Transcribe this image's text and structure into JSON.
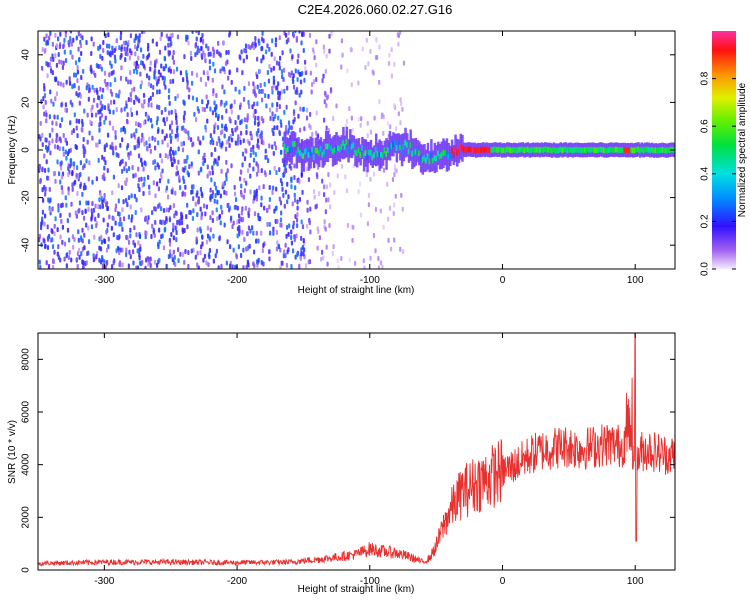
{
  "title": "C2E4.2026.060.02.27.G16",
  "chart_data": [
    {
      "type": "heatmap",
      "title": "",
      "xlabel": "Height of straight line (km)",
      "ylabel": "Frequency (Hz)",
      "xlim": [
        -350,
        130
      ],
      "ylim": [
        -50,
        50
      ],
      "x_ticks": [
        -300,
        -200,
        -100,
        0,
        100
      ],
      "y_ticks": [
        -40,
        -20,
        0,
        20,
        40
      ],
      "colorbar": {
        "label": "Normalized spectral amplitude",
        "range": [
          0,
          1
        ],
        "ticks": [
          0.0,
          0.2,
          0.4,
          0.6,
          0.8
        ]
      },
      "features": [
        {
          "region": "noise",
          "x_range": [
            -350,
            -75
          ],
          "y_range": [
            -50,
            50
          ],
          "amplitude": 0.15
        },
        {
          "region": "carrier",
          "x_range": [
            -165,
            130
          ],
          "center_freq_hz": 0,
          "amplitude": 0.6
        },
        {
          "region": "peak",
          "x_range": [
            -40,
            -10
          ],
          "center_freq_hz": 0.5,
          "amplitude": 0.95
        }
      ]
    },
    {
      "type": "line",
      "title": "",
      "xlabel": "Height of straight line (km)",
      "ylabel": "SNR (10 * v/v)",
      "xlim": [
        -350,
        130
      ],
      "ylim": [
        0,
        9000
      ],
      "x_ticks": [
        -300,
        -200,
        -100,
        0,
        100
      ],
      "y_ticks": [
        0,
        2000,
        4000,
        6000,
        8000
      ],
      "series": [
        {
          "name": "SNR",
          "color": "#e8302e",
          "x": [
            -350,
            -300,
            -250,
            -200,
            -160,
            -130,
            -110,
            -100,
            -90,
            -80,
            -70,
            -60,
            -55,
            -50,
            -45,
            -40,
            -35,
            -30,
            -25,
            -20,
            -15,
            -10,
            -5,
            0,
            10,
            20,
            30,
            40,
            50,
            60,
            70,
            80,
            90,
            95,
            100,
            105,
            110,
            120,
            130
          ],
          "y": [
            250,
            300,
            300,
            280,
            300,
            450,
            600,
            800,
            700,
            650,
            500,
            300,
            450,
            900,
            1600,
            2200,
            2600,
            3000,
            3100,
            3300,
            3400,
            3500,
            3650,
            3750,
            4000,
            4350,
            4550,
            4650,
            4700,
            4600,
            4700,
            4800,
            4700,
            5200,
            4100,
            4500,
            4600,
            4400,
            4350
          ]
        }
      ],
      "annotations": [
        {
          "x": 100,
          "y": 9000,
          "note": "spike"
        },
        {
          "x": 100,
          "y": 1100,
          "note": "dip"
        }
      ]
    }
  ]
}
